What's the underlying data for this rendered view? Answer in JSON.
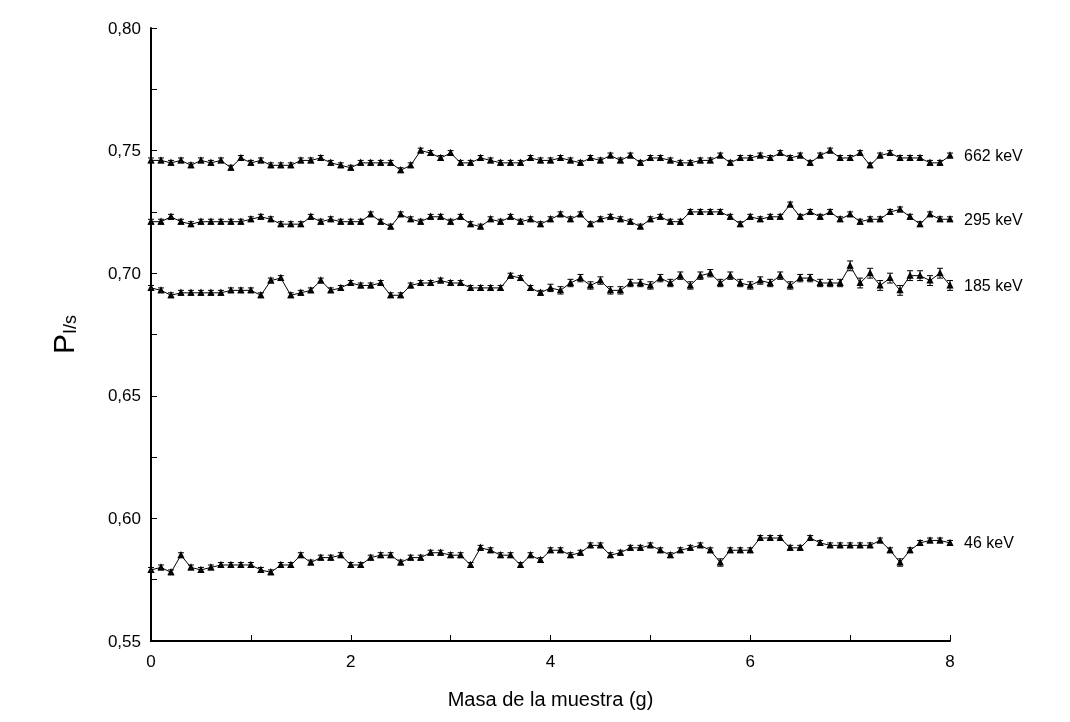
{
  "chart_data": {
    "type": "line",
    "xlabel": "Masa de la muestra (g)",
    "ylabel": "P$_{I/s}$",
    "x": [
      0,
      0.1,
      0.2,
      0.3,
      0.4,
      0.5,
      0.6,
      0.7,
      0.8,
      0.9,
      1,
      1.1,
      1.2,
      1.3,
      1.4,
      1.5,
      1.6,
      1.7,
      1.8,
      1.9,
      2,
      2.1,
      2.2,
      2.3,
      2.4,
      2.5,
      2.6,
      2.7,
      2.8,
      2.9,
      3,
      3.1,
      3.2,
      3.3,
      3.4,
      3.5,
      3.6,
      3.7,
      3.8,
      3.9,
      4,
      4.1,
      4.2,
      4.3,
      4.4,
      4.5,
      4.6,
      4.7,
      4.8,
      4.9,
      5,
      5.1,
      5.2,
      5.3,
      5.4,
      5.5,
      5.6,
      5.7,
      5.8,
      5.9,
      6,
      6.1,
      6.2,
      6.3,
      6.4,
      6.5,
      6.6,
      6.7,
      6.8,
      6.9,
      7,
      7.1,
      7.2,
      7.3,
      7.4,
      7.5,
      7.6,
      7.7,
      7.8,
      7.9,
      8
    ],
    "xlim": [
      0,
      8
    ],
    "xticks": [
      0,
      {
        "value": 1,
        "label": null
      },
      2,
      {
        "value": 3,
        "label": null
      },
      4,
      {
        "value": 5,
        "label": null
      },
      6,
      {
        "value": 7,
        "label": null
      },
      8
    ],
    "ylim": [
      0.55,
      0.8
    ],
    "yticks": [
      {
        "value": 0.55,
        "label": "0,55"
      },
      {
        "value": 0.575,
        "label": null
      },
      {
        "value": 0.6,
        "label": "0,60"
      },
      {
        "value": 0.625,
        "label": null
      },
      {
        "value": 0.65,
        "label": "0,65"
      },
      {
        "value": 0.675,
        "label": null
      },
      {
        "value": 0.7,
        "label": "0,70"
      },
      {
        "value": 0.725,
        "label": null
      },
      {
        "value": 0.75,
        "label": "0,75"
      },
      {
        "value": 0.775,
        "label": null
      },
      {
        "value": 0.8,
        "label": "0,80"
      }
    ],
    "grid": false,
    "legend": false,
    "marker": "triangle",
    "line_style": "solid",
    "series": [
      {
        "name": "662 keV",
        "color": "#000000",
        "values": [
          0.746,
          0.746,
          0.745,
          0.746,
          0.744,
          0.746,
          0.745,
          0.746,
          0.743,
          0.747,
          0.745,
          0.746,
          0.744,
          0.744,
          0.744,
          0.746,
          0.746,
          0.747,
          0.745,
          0.744,
          0.743,
          0.745,
          0.745,
          0.745,
          0.745,
          0.742,
          0.744,
          0.75,
          0.749,
          0.747,
          0.749,
          0.745,
          0.745,
          0.747,
          0.746,
          0.745,
          0.745,
          0.745,
          0.747,
          0.746,
          0.746,
          0.747,
          0.746,
          0.745,
          0.747,
          0.746,
          0.748,
          0.746,
          0.748,
          0.745,
          0.747,
          0.747,
          0.746,
          0.745,
          0.745,
          0.746,
          0.746,
          0.748,
          0.745,
          0.747,
          0.747,
          0.748,
          0.747,
          0.749,
          0.747,
          0.748,
          0.745,
          0.748,
          0.75,
          0.747,
          0.747,
          0.749,
          0.744,
          0.748,
          0.749,
          0.747,
          0.747,
          0.747,
          0.745,
          0.745,
          0.748
        ],
        "errors": [
          0.001,
          0.001,
          0.001,
          0.001,
          0.001,
          0.001,
          0.001,
          0.001,
          0.001,
          0.001,
          0.001,
          0.001,
          0.001,
          0.001,
          0.001,
          0.001,
          0.001,
          0.001,
          0.001,
          0.001,
          0.001,
          0.001,
          0.001,
          0.001,
          0.001,
          0.001,
          0.001,
          0.001,
          0.001,
          0.001,
          0.001,
          0.001,
          0.001,
          0.001,
          0.001,
          0.001,
          0.001,
          0.001,
          0.001,
          0.001,
          0.001,
          0.001,
          0.001,
          0.001,
          0.001,
          0.001,
          0.001,
          0.001,
          0.001,
          0.001,
          0.001,
          0.001,
          0.001,
          0.001,
          0.001,
          0.001,
          0.001,
          0.001,
          0.001,
          0.001,
          0.001,
          0.001,
          0.001,
          0.001,
          0.001,
          0.001,
          0.001,
          0.001,
          0.001,
          0.001,
          0.001,
          0.001,
          0.001,
          0.001,
          0.001,
          0.001,
          0.001,
          0.001,
          0.001,
          0.001,
          0.001
        ]
      },
      {
        "name": "295 keV",
        "color": "#000000",
        "values": [
          0.721,
          0.721,
          0.723,
          0.721,
          0.72,
          0.721,
          0.721,
          0.721,
          0.721,
          0.721,
          0.722,
          0.723,
          0.722,
          0.72,
          0.72,
          0.72,
          0.723,
          0.721,
          0.722,
          0.721,
          0.721,
          0.721,
          0.724,
          0.721,
          0.719,
          0.724,
          0.722,
          0.721,
          0.723,
          0.723,
          0.721,
          0.723,
          0.72,
          0.719,
          0.722,
          0.721,
          0.723,
          0.721,
          0.722,
          0.72,
          0.722,
          0.724,
          0.722,
          0.724,
          0.72,
          0.722,
          0.723,
          0.722,
          0.721,
          0.719,
          0.722,
          0.723,
          0.721,
          0.721,
          0.725,
          0.725,
          0.725,
          0.725,
          0.723,
          0.72,
          0.723,
          0.722,
          0.723,
          0.723,
          0.728,
          0.723,
          0.725,
          0.723,
          0.725,
          0.722,
          0.724,
          0.721,
          0.722,
          0.722,
          0.725,
          0.726,
          0.723,
          0.72,
          0.724,
          0.722,
          0.722
        ],
        "errors": [
          0.001,
          0.001,
          0.001,
          0.001,
          0.001,
          0.001,
          0.001,
          0.001,
          0.001,
          0.001,
          0.001,
          0.001,
          0.001,
          0.001,
          0.001,
          0.001,
          0.001,
          0.001,
          0.001,
          0.001,
          0.001,
          0.001,
          0.001,
          0.001,
          0.001,
          0.001,
          0.001,
          0.001,
          0.001,
          0.001,
          0.001,
          0.001,
          0.001,
          0.001,
          0.001,
          0.001,
          0.001,
          0.001,
          0.001,
          0.001,
          0.001,
          0.001,
          0.001,
          0.001,
          0.001,
          0.001,
          0.001,
          0.001,
          0.001,
          0.001,
          0.001,
          0.001,
          0.001,
          0.001,
          0.001,
          0.001,
          0.001,
          0.001,
          0.001,
          0.001,
          0.001,
          0.001,
          0.001,
          0.001,
          0.001,
          0.001,
          0.001,
          0.001,
          0.001,
          0.001,
          0.001,
          0.001,
          0.001,
          0.001,
          0.001,
          0.001,
          0.001,
          0.001,
          0.001,
          0.001,
          0.001
        ]
      },
      {
        "name": "185 keV",
        "color": "#000000",
        "values": [
          0.694,
          0.693,
          0.691,
          0.692,
          0.692,
          0.692,
          0.692,
          0.692,
          0.693,
          0.693,
          0.693,
          0.691,
          0.697,
          0.698,
          0.691,
          0.692,
          0.693,
          0.697,
          0.693,
          0.694,
          0.696,
          0.695,
          0.695,
          0.696,
          0.691,
          0.691,
          0.695,
          0.696,
          0.696,
          0.697,
          0.696,
          0.696,
          0.694,
          0.694,
          0.694,
          0.694,
          0.699,
          0.698,
          0.694,
          0.692,
          0.694,
          0.693,
          0.696,
          0.698,
          0.695,
          0.697,
          0.693,
          0.693,
          0.696,
          0.696,
          0.695,
          0.698,
          0.696,
          0.699,
          0.695,
          0.699,
          0.7,
          0.696,
          0.699,
          0.696,
          0.695,
          0.697,
          0.696,
          0.699,
          0.695,
          0.698,
          0.698,
          0.696,
          0.696,
          0.696,
          0.703,
          0.696,
          0.7,
          0.695,
          0.698,
          0.693,
          0.699,
          0.699,
          0.697,
          0.7,
          0.695
        ],
        "errors": [
          0.001,
          0.001,
          0.001,
          0.001,
          0.001,
          0.001,
          0.001,
          0.001,
          0.001,
          0.001,
          0.001,
          0.001,
          0.001,
          0.001,
          0.001,
          0.001,
          0.001,
          0.001,
          0.001,
          0.001,
          0.001,
          0.001,
          0.001,
          0.001,
          0.001,
          0.001,
          0.001,
          0.001,
          0.001,
          0.001,
          0.001,
          0.001,
          0.001,
          0.001,
          0.001,
          0.001,
          0.001,
          0.001,
          0.001,
          0.001,
          0.0015,
          0.0015,
          0.0015,
          0.0015,
          0.0015,
          0.0015,
          0.0015,
          0.0015,
          0.0015,
          0.0015,
          0.0015,
          0.0015,
          0.0015,
          0.0015,
          0.0015,
          0.0015,
          0.0015,
          0.0015,
          0.0015,
          0.0015,
          0.0015,
          0.0015,
          0.0015,
          0.0015,
          0.0015,
          0.0015,
          0.0015,
          0.0015,
          0.0015,
          0.0015,
          0.002,
          0.002,
          0.002,
          0.002,
          0.002,
          0.002,
          0.002,
          0.002,
          0.002,
          0.002,
          0.002
        ]
      },
      {
        "name": "46 keV",
        "color": "#000000",
        "values": [
          0.579,
          0.58,
          0.578,
          0.585,
          0.58,
          0.579,
          0.58,
          0.581,
          0.581,
          0.581,
          0.581,
          0.579,
          0.578,
          0.581,
          0.581,
          0.585,
          0.582,
          0.584,
          0.584,
          0.585,
          0.581,
          0.581,
          0.584,
          0.585,
          0.585,
          0.582,
          0.584,
          0.584,
          0.586,
          0.586,
          0.585,
          0.585,
          0.581,
          0.588,
          0.587,
          0.585,
          0.585,
          0.581,
          0.585,
          0.583,
          0.587,
          0.587,
          0.585,
          0.586,
          0.589,
          0.589,
          0.585,
          0.586,
          0.588,
          0.588,
          0.589,
          0.587,
          0.585,
          0.587,
          0.588,
          0.589,
          0.587,
          0.582,
          0.587,
          0.587,
          0.587,
          0.592,
          0.592,
          0.592,
          0.588,
          0.588,
          0.592,
          0.59,
          0.589,
          0.589,
          0.589,
          0.589,
          0.589,
          0.591,
          0.587,
          0.582,
          0.587,
          0.59,
          0.591,
          0.591,
          0.59
        ],
        "errors": [
          0.001,
          0.001,
          0.001,
          0.001,
          0.001,
          0.001,
          0.001,
          0.001,
          0.001,
          0.001,
          0.001,
          0.001,
          0.001,
          0.001,
          0.001,
          0.001,
          0.001,
          0.001,
          0.001,
          0.001,
          0.001,
          0.001,
          0.001,
          0.001,
          0.001,
          0.001,
          0.001,
          0.001,
          0.001,
          0.001,
          0.001,
          0.001,
          0.001,
          0.001,
          0.001,
          0.001,
          0.001,
          0.001,
          0.001,
          0.001,
          0.001,
          0.001,
          0.001,
          0.001,
          0.001,
          0.001,
          0.001,
          0.001,
          0.001,
          0.001,
          0.001,
          0.001,
          0.001,
          0.001,
          0.001,
          0.001,
          0.001,
          0.0015,
          0.001,
          0.001,
          0.001,
          0.001,
          0.001,
          0.001,
          0.001,
          0.001,
          0.001,
          0.001,
          0.001,
          0.001,
          0.001,
          0.001,
          0.001,
          0.001,
          0.001,
          0.0015,
          0.001,
          0.001,
          0.001,
          0.001,
          0.001
        ]
      }
    ]
  }
}
